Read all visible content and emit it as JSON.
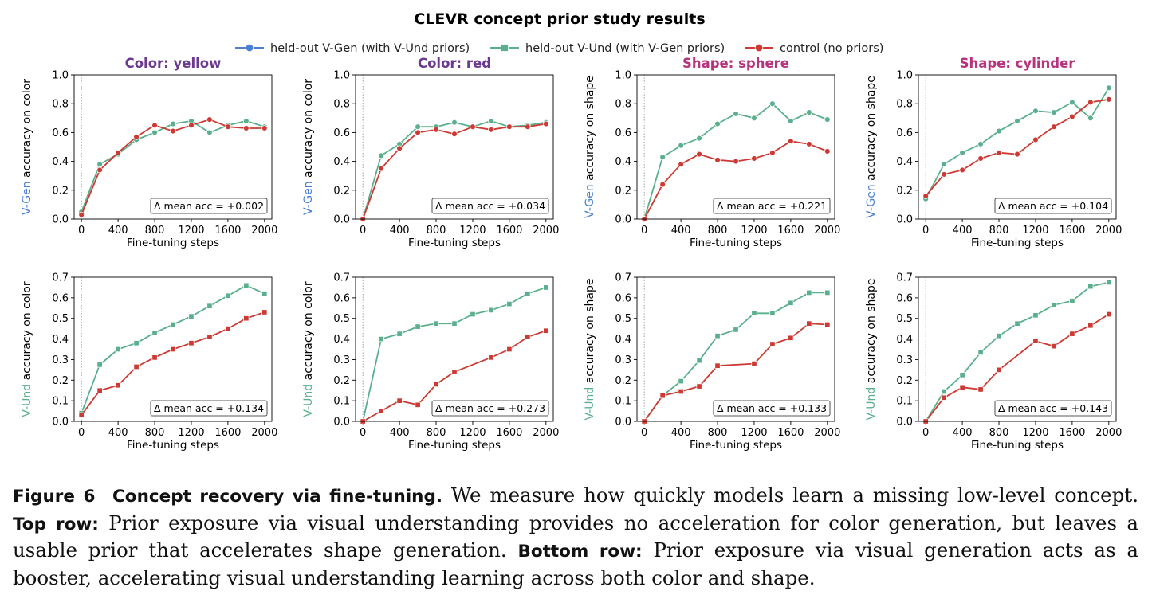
{
  "figure": {
    "suptitle": "CLEVR concept prior study results",
    "legend": [
      {
        "label": "held-out V-Gen (with V-Und priors)",
        "color": "#4a7fd4",
        "marker": "circle"
      },
      {
        "label": "held-out V-Und (with V-Gen priors)",
        "color": "#5aaf8c",
        "marker": "square"
      },
      {
        "label": "control (no priors)",
        "color": "#cc3a33",
        "marker": "circle"
      }
    ],
    "xlabel": "Fine-tuning steps",
    "ylabel_prefix": {
      "top": "V-Gen",
      "bottom": "V-Und"
    },
    "ylabel_suffix": {
      "color": " accuracy on color",
      "shape": " accuracy on shape"
    },
    "delta_prefix": "Δ mean acc = "
  },
  "colors": {
    "vgen": "#4a7fd4",
    "vund": "#5aaf8c",
    "control": "#cc3a33",
    "title_color": "#6b3a8f",
    "title_shape": "#b8337e"
  },
  "caption": {
    "fig_label": "Figure 6",
    "title": "Concept recovery via fine-tuning.",
    "text1": "We measure how quickly models learn a missing low-level concept.",
    "top_label": "Top row:",
    "text2": "Prior exposure via visual understanding provides no acceleration for color generation, but leaves a usable prior that accelerates shape generation.",
    "bottom_label": "Bottom row:",
    "text3": "Prior exposure via visual generation acts as a booster, accelerating visual understanding learning across both color and shape."
  },
  "chart_data": [
    {
      "type": "line",
      "title": "Color: yellow",
      "concept": "color",
      "row": "top",
      "xlabel": "Fine-tuning steps",
      "ylabel": "V-Gen accuracy on color",
      "ylim": [
        0,
        1.0
      ],
      "yticks": [
        0.0,
        0.2,
        0.4,
        0.6,
        0.8,
        1.0
      ],
      "xticks": [
        0,
        400,
        800,
        1200,
        1600,
        2000
      ],
      "x": [
        0,
        200,
        400,
        600,
        800,
        1000,
        1200,
        1400,
        1600,
        1800,
        2000
      ],
      "series": [
        {
          "name": "held-out V-Gen (with V-Und priors)",
          "values": [
            0.05,
            0.38,
            0.45,
            0.55,
            0.6,
            0.66,
            0.68,
            0.6,
            0.65,
            0.68,
            0.64
          ]
        },
        {
          "name": "control (no priors)",
          "values": [
            0.03,
            0.34,
            0.46,
            0.57,
            0.65,
            0.61,
            0.65,
            0.69,
            0.64,
            0.63,
            0.63
          ]
        }
      ],
      "delta": "+0.002"
    },
    {
      "type": "line",
      "title": "Color: red",
      "concept": "color",
      "row": "top",
      "xlabel": "Fine-tuning steps",
      "ylabel": "V-Gen accuracy on color",
      "ylim": [
        0,
        1.0
      ],
      "yticks": [
        0.0,
        0.2,
        0.4,
        0.6,
        0.8,
        1.0
      ],
      "xticks": [
        0,
        400,
        800,
        1200,
        1600,
        2000
      ],
      "x": [
        0,
        200,
        400,
        600,
        800,
        1000,
        1200,
        1400,
        1600,
        1800,
        2000
      ],
      "series": [
        {
          "name": "held-out V-Gen (with V-Und priors)",
          "values": [
            0.0,
            0.44,
            0.52,
            0.64,
            0.64,
            0.67,
            0.64,
            0.68,
            0.64,
            0.65,
            0.67
          ]
        },
        {
          "name": "control (no priors)",
          "values": [
            0.0,
            0.35,
            0.49,
            0.6,
            0.62,
            0.59,
            0.64,
            0.62,
            0.64,
            0.64,
            0.66
          ]
        }
      ],
      "delta": "+0.034"
    },
    {
      "type": "line",
      "title": "Shape: sphere",
      "concept": "shape",
      "row": "top",
      "xlabel": "Fine-tuning steps",
      "ylabel": "V-Gen accuracy on shape",
      "ylim": [
        0,
        1.0
      ],
      "yticks": [
        0.0,
        0.2,
        0.4,
        0.6,
        0.8,
        1.0
      ],
      "xticks": [
        0,
        400,
        800,
        1200,
        1600,
        2000
      ],
      "x": [
        0,
        200,
        400,
        600,
        800,
        1000,
        1200,
        1400,
        1600,
        1800,
        2000
      ],
      "series": [
        {
          "name": "held-out V-Gen (with V-Und priors)",
          "values": [
            0.0,
            0.43,
            0.51,
            0.56,
            0.66,
            0.73,
            0.7,
            0.8,
            0.68,
            0.74,
            0.69
          ]
        },
        {
          "name": "control (no priors)",
          "values": [
            0.0,
            0.24,
            0.38,
            0.45,
            0.41,
            0.4,
            0.42,
            0.46,
            0.54,
            0.52,
            0.47
          ]
        }
      ],
      "delta": "+0.221"
    },
    {
      "type": "line",
      "title": "Shape: cylinder",
      "concept": "shape",
      "row": "top",
      "xlabel": "Fine-tuning steps",
      "ylabel": "V-Gen accuracy on shape",
      "ylim": [
        0,
        1.0
      ],
      "yticks": [
        0.0,
        0.2,
        0.4,
        0.6,
        0.8,
        1.0
      ],
      "xticks": [
        0,
        400,
        800,
        1200,
        1600,
        2000
      ],
      "x": [
        0,
        200,
        400,
        600,
        800,
        1000,
        1200,
        1400,
        1600,
        1800,
        2000
      ],
      "series": [
        {
          "name": "held-out V-Gen (with V-Und priors)",
          "values": [
            0.14,
            0.38,
            0.46,
            0.52,
            0.61,
            0.68,
            0.75,
            0.74,
            0.81,
            0.7,
            0.91
          ]
        },
        {
          "name": "control (no priors)",
          "values": [
            0.16,
            0.31,
            0.34,
            0.42,
            0.46,
            0.45,
            0.55,
            0.64,
            0.71,
            0.81,
            0.83
          ]
        }
      ],
      "delta": "+0.104"
    },
    {
      "type": "line",
      "title": "",
      "concept": "color",
      "row": "bottom",
      "xlabel": "Fine-tuning steps",
      "ylabel": "V-Und accuracy on color",
      "ylim": [
        0,
        0.7
      ],
      "yticks": [
        0.0,
        0.1,
        0.2,
        0.3,
        0.4,
        0.5,
        0.6,
        0.7
      ],
      "xticks": [
        0,
        400,
        800,
        1200,
        1600,
        2000
      ],
      "x": [
        0,
        200,
        400,
        600,
        800,
        1000,
        1200,
        1400,
        1600,
        1800,
        2000
      ],
      "series": [
        {
          "name": "held-out V-Und (with V-Gen priors)",
          "values": [
            0.04,
            0.275,
            0.35,
            0.38,
            0.43,
            0.47,
            0.51,
            0.56,
            0.61,
            0.66,
            0.62
          ]
        },
        {
          "name": "control (no priors)",
          "values": [
            0.03,
            0.15,
            0.175,
            0.265,
            0.31,
            0.35,
            0.38,
            0.41,
            0.45,
            0.5,
            0.53
          ]
        }
      ],
      "delta": "+0.134"
    },
    {
      "type": "line",
      "title": "",
      "concept": "color",
      "row": "bottom",
      "xlabel": "Fine-tuning steps",
      "ylabel": "V-Und accuracy on color",
      "ylim": [
        0,
        0.7
      ],
      "yticks": [
        0.0,
        0.1,
        0.2,
        0.3,
        0.4,
        0.5,
        0.6,
        0.7
      ],
      "xticks": [
        0,
        400,
        800,
        1200,
        1600,
        2000
      ],
      "x": [
        0,
        200,
        400,
        600,
        800,
        1000,
        1200,
        1400,
        1600,
        1800,
        2000
      ],
      "series": [
        {
          "name": "held-out V-Und (with V-Gen priors)",
          "values": [
            0.0,
            0.4,
            0.425,
            0.46,
            0.475,
            0.475,
            0.52,
            0.54,
            0.57,
            0.62,
            0.65
          ]
        },
        {
          "name": "control (no priors)",
          "values": [
            0.0,
            0.05,
            0.1,
            0.08,
            0.18,
            0.24,
            null,
            0.31,
            0.35,
            0.41,
            0.44
          ]
        }
      ],
      "delta": "+0.273"
    },
    {
      "type": "line",
      "title": "",
      "concept": "shape",
      "row": "bottom",
      "xlabel": "Fine-tuning steps",
      "ylabel": "V-Und accuracy on shape",
      "ylim": [
        0,
        0.7
      ],
      "yticks": [
        0.0,
        0.1,
        0.2,
        0.3,
        0.4,
        0.5,
        0.6,
        0.7
      ],
      "xticks": [
        0,
        400,
        800,
        1200,
        1600,
        2000
      ],
      "x": [
        0,
        200,
        400,
        600,
        800,
        1000,
        1200,
        1400,
        1600,
        1800,
        2000
      ],
      "series": [
        {
          "name": "held-out V-Und (with V-Gen priors)",
          "values": [
            0.0,
            0.125,
            0.195,
            0.295,
            0.415,
            0.445,
            0.525,
            0.525,
            0.575,
            0.625,
            0.625
          ]
        },
        {
          "name": "control (no priors)",
          "values": [
            0.0,
            0.125,
            0.145,
            0.17,
            0.27,
            null,
            0.28,
            0.375,
            0.405,
            0.475,
            0.47
          ]
        }
      ],
      "delta": "+0.133"
    },
    {
      "type": "line",
      "title": "",
      "concept": "shape",
      "row": "bottom",
      "xlabel": "Fine-tuning steps",
      "ylabel": "V-Und accuracy on shape",
      "ylim": [
        0,
        0.7
      ],
      "yticks": [
        0.0,
        0.1,
        0.2,
        0.3,
        0.4,
        0.5,
        0.6,
        0.7
      ],
      "xticks": [
        0,
        400,
        800,
        1200,
        1600,
        2000
      ],
      "x": [
        0,
        200,
        400,
        600,
        800,
        1000,
        1200,
        1400,
        1600,
        1800,
        2000
      ],
      "series": [
        {
          "name": "held-out V-Und (with V-Gen priors)",
          "values": [
            0.0,
            0.145,
            0.225,
            0.335,
            0.415,
            0.475,
            0.515,
            0.565,
            0.585,
            0.655,
            0.675
          ]
        },
        {
          "name": "control (no priors)",
          "values": [
            0.0,
            0.115,
            0.165,
            0.155,
            0.25,
            null,
            0.39,
            0.365,
            0.425,
            0.465,
            0.52
          ]
        }
      ],
      "delta": "+0.143"
    }
  ]
}
